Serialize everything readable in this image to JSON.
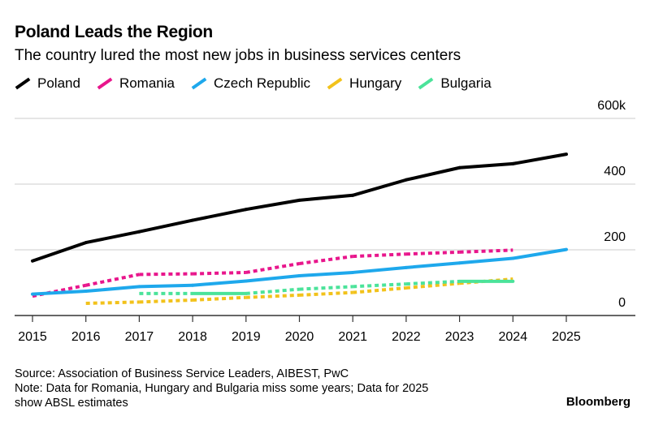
{
  "title": "Poland Leads the Region",
  "subtitle": "The country lured the most new jobs in business services centers",
  "chart_data": {
    "type": "line",
    "x": [
      2015,
      2016,
      2017,
      2018,
      2019,
      2020,
      2021,
      2022,
      2023,
      2024,
      2025
    ],
    "xtick_labels": [
      "2015",
      "2016",
      "2017",
      "2018",
      "2019",
      "2020",
      "2021",
      "2022",
      "2023",
      "2024",
      "2025"
    ],
    "ylim": [
      0,
      600
    ],
    "yticks": [
      0,
      200,
      400,
      600
    ],
    "ytick_labels": [
      "0",
      "200",
      "400",
      "600k"
    ],
    "legend_placement": "top-left",
    "series": [
      {
        "name": "Poland",
        "color": "#000000",
        "style": "solid",
        "values": [
          166,
          222,
          255,
          290,
          323,
          351,
          366,
          413,
          450,
          462,
          491
        ]
      },
      {
        "name": "Romania",
        "color": "#e8168c",
        "style": "dotted",
        "values": [
          59,
          92,
          125,
          127,
          131,
          158,
          180,
          187,
          193,
          199,
          null
        ]
      },
      {
        "name": "Czech Republic",
        "color": "#1ea8ec",
        "style": "solid",
        "values": [
          65,
          74,
          88,
          92,
          105,
          121,
          131,
          146,
          160,
          174,
          201
        ]
      },
      {
        "name": "Hungary",
        "color": "#f2c21b",
        "style": "dotted",
        "values": [
          null,
          37,
          41,
          47,
          55,
          62,
          70,
          84,
          98,
          111,
          null
        ]
      },
      {
        "name": "Bulgaria",
        "color": "#4be39a",
        "style": "mixed",
        "solid_segments": [
          [
            2018,
            2019
          ],
          [
            2023,
            2024
          ]
        ],
        "values": [
          null,
          null,
          67,
          67,
          67,
          80,
          88,
          96,
          104,
          104,
          null
        ]
      }
    ]
  },
  "source": "Source: Association of Business Service Leaders, AIBEST, PwC",
  "note_line1": "Note: Data for Romania, Hungary and Bulgaria miss some years; Data for 2025",
  "note_line2": "show ABSL estimates",
  "brand": "Bloomberg"
}
